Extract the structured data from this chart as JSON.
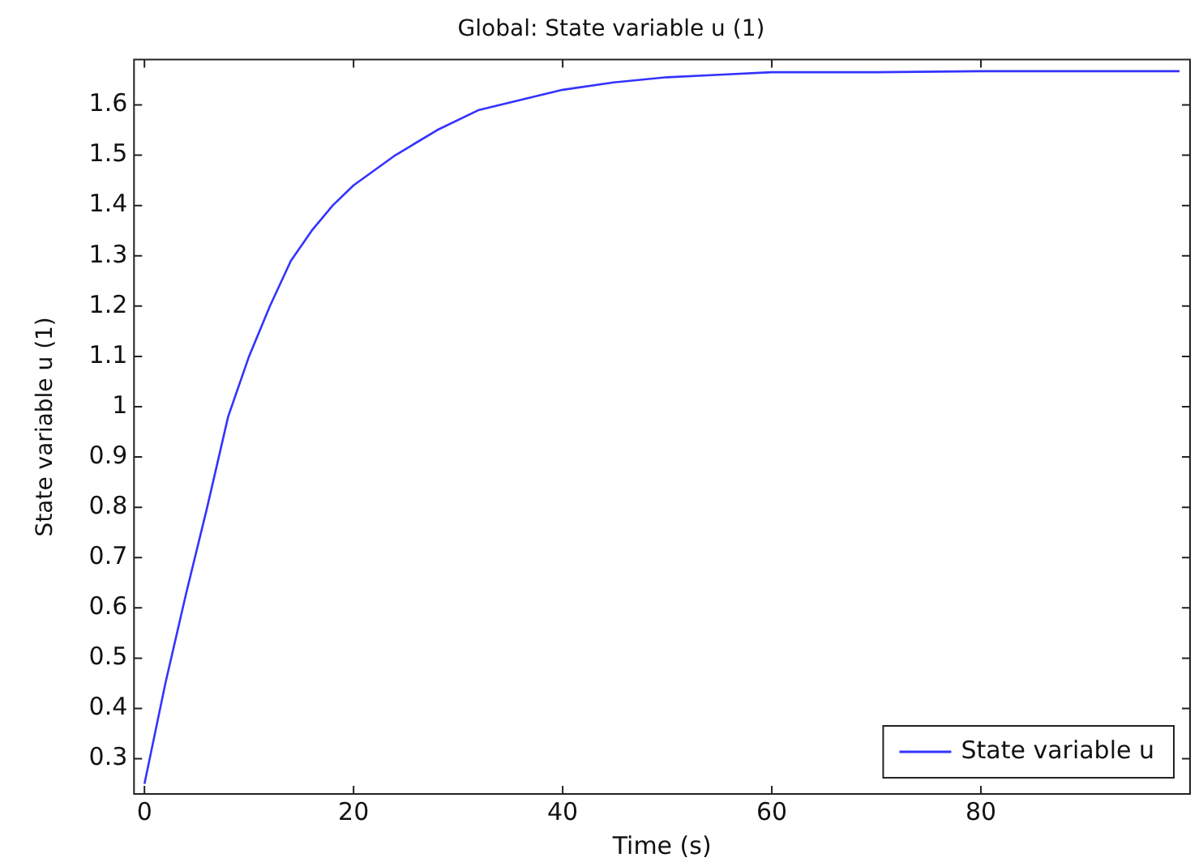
{
  "chart_data": {
    "type": "line",
    "title": "Global: State variable u (1)",
    "xlabel": "Time (s)",
    "ylabel": "State variable u (1)",
    "x": [
      0,
      2,
      4,
      6,
      8,
      10,
      12,
      14,
      16,
      18,
      20,
      24,
      28,
      32,
      36,
      40,
      45,
      50,
      55,
      60,
      70,
      80,
      90,
      99
    ],
    "series": [
      {
        "name": "State variable u",
        "color": "#3333ff",
        "values": [
          0.25,
          0.45,
          0.63,
          0.8,
          0.98,
          1.1,
          1.2,
          1.29,
          1.35,
          1.4,
          1.44,
          1.5,
          1.55,
          1.59,
          1.61,
          1.63,
          1.645,
          1.655,
          1.66,
          1.665,
          1.665,
          1.667,
          1.667,
          1.667
        ]
      }
    ],
    "xlim": [
      -1,
      100
    ],
    "xticks": [
      0,
      20,
      40,
      60,
      80
    ],
    "ylim": [
      0.23,
      1.69
    ],
    "yticks": [
      0.3,
      0.4,
      0.5,
      0.6,
      0.7,
      0.8,
      0.9,
      1,
      1.1,
      1.2,
      1.3,
      1.4,
      1.5,
      1.6
    ],
    "grid": false,
    "legend": "bottom right",
    "marker": "none",
    "line_style": "solid"
  }
}
